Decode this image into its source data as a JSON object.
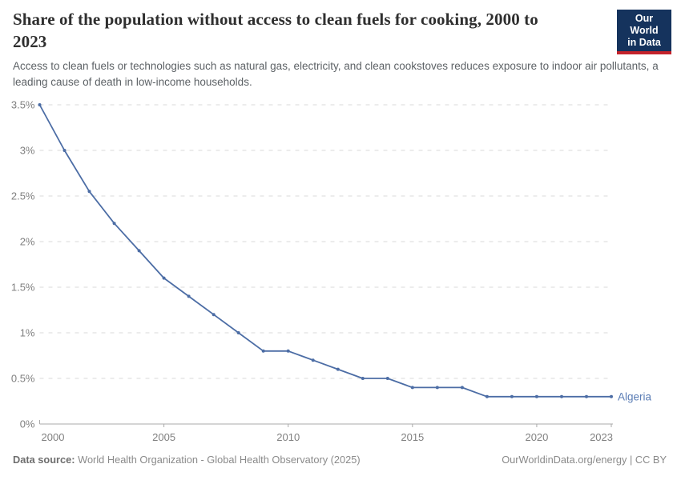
{
  "header": {
    "title": "Share of the population without access to clean fuels for cooking, 2000 to 2023",
    "subtitle": "Access to clean fuels or technologies such as natural gas, electricity, and clean cookstoves reduces exposure to indoor air pollutants, a leading cause of death in low-income households.",
    "logo": {
      "line1": "Our World",
      "line2": "in Data",
      "bg_color": "#15335d",
      "bar_color": "#c4232b"
    }
  },
  "chart_data": {
    "type": "line",
    "title": "Share of the population without access to clean fuels for cooking, 2000 to 2023",
    "x": [
      2000,
      2001,
      2002,
      2003,
      2004,
      2005,
      2006,
      2007,
      2008,
      2009,
      2010,
      2011,
      2012,
      2013,
      2014,
      2015,
      2016,
      2017,
      2018,
      2019,
      2020,
      2021,
      2022,
      2023
    ],
    "series": [
      {
        "name": "Algeria",
        "values": [
          3.5,
          3.0,
          2.55,
          2.2,
          1.9,
          1.6,
          1.4,
          1.2,
          1.0,
          0.8,
          0.8,
          0.7,
          0.6,
          0.5,
          0.5,
          0.4,
          0.4,
          0.4,
          0.3,
          0.3,
          0.3,
          0.3,
          0.3,
          0.3
        ]
      }
    ],
    "unit": "%",
    "xlim": [
      2000,
      2023
    ],
    "ylim": [
      0,
      3.5
    ],
    "y_ticks": {
      "values": [
        0,
        0.5,
        1,
        1.5,
        2,
        2.5,
        3,
        3.5
      ],
      "labels": [
        "0%",
        "0.5%",
        "1%",
        "1.5%",
        "2%",
        "2.5%",
        "3%",
        "3.5%"
      ]
    },
    "x_ticks": {
      "values": [
        2000,
        2005,
        2010,
        2015,
        2020,
        2023
      ],
      "labels": [
        "2000",
        "2005",
        "2010",
        "2015",
        "2020",
        "2023"
      ]
    },
    "grid": true,
    "legend_position": "end-of-line-label",
    "colors": {
      "line": "#4c6da5",
      "entity_label": "#5b7db5",
      "grid": "#d9d9d9",
      "axis": "#a9a9a9",
      "tick_text": "#808080"
    }
  },
  "footer": {
    "datasource_label": "Data source:",
    "datasource_text": "World Health Organization - Global Health Observatory (2025)",
    "credit": "OurWorldinData.org/energy | CC BY"
  }
}
